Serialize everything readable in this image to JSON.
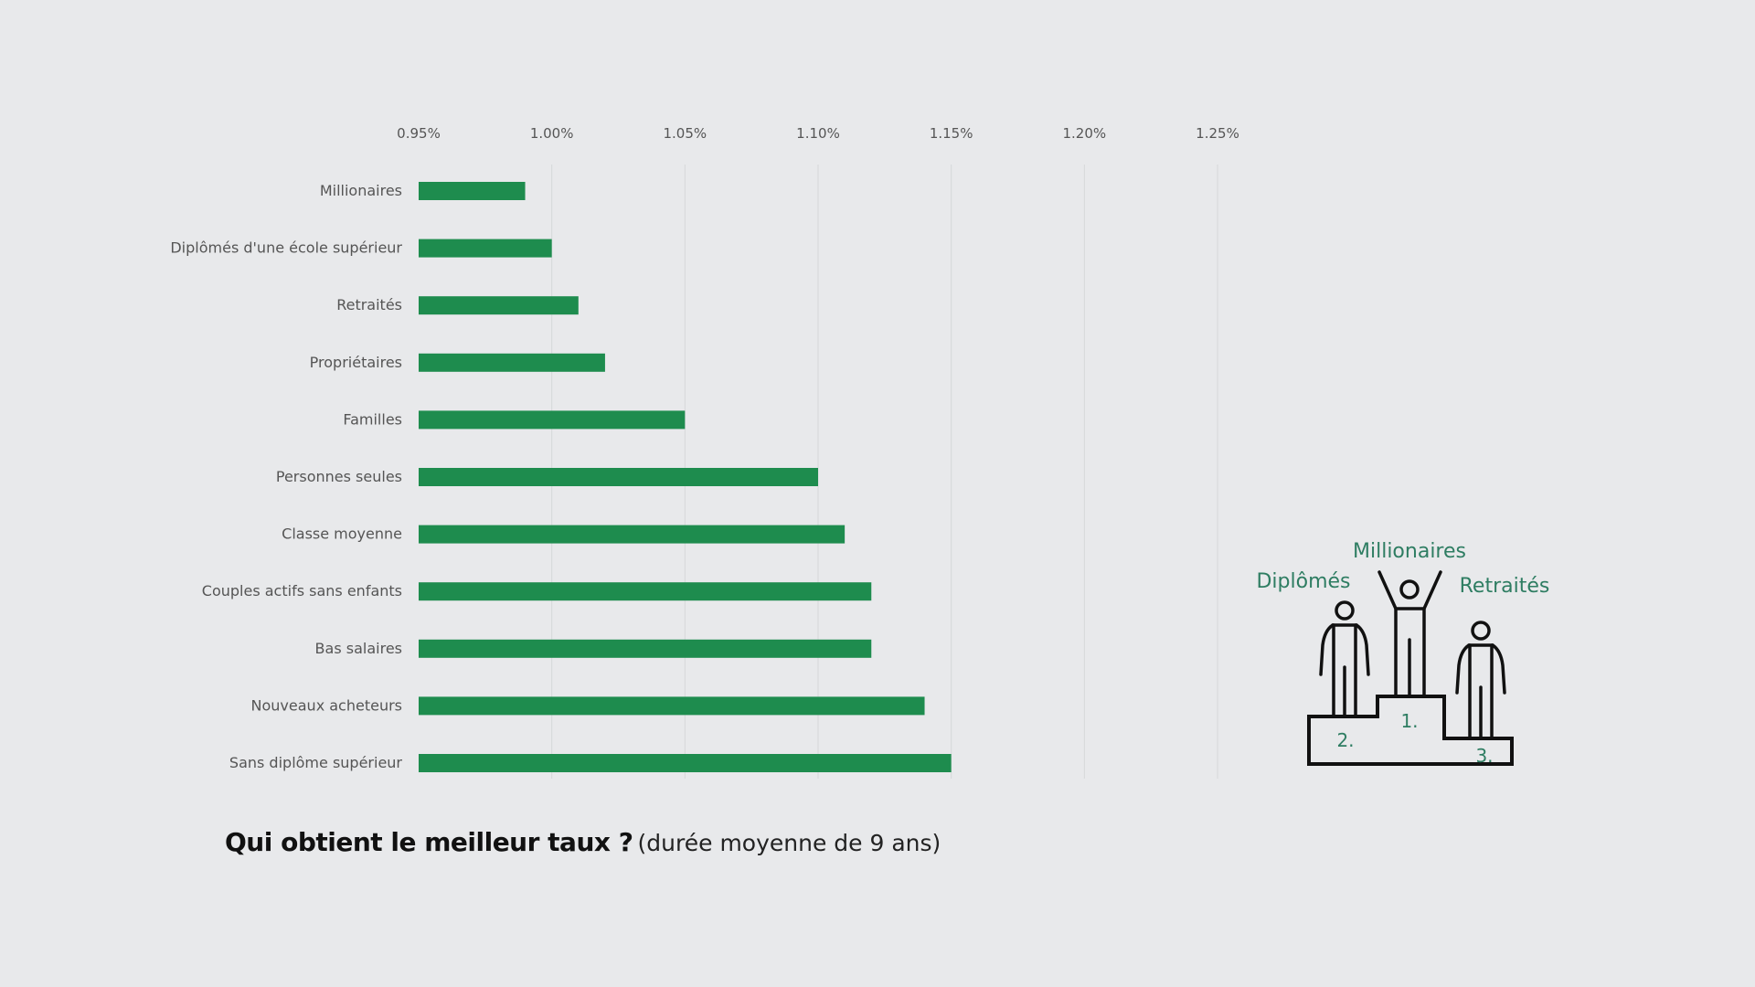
{
  "chart_data": {
    "type": "bar",
    "orientation": "horizontal",
    "categories": [
      "Millionaires",
      "Diplômés d'une école supérieur",
      "Retraités",
      "Propriétaires",
      "Familles",
      "Personnes seules",
      "Classe moyenne",
      "Couples actifs sans enfants",
      "Bas salaires",
      "Nouveaux acheteurs",
      "Sans diplôme supérieur"
    ],
    "values": [
      0.99,
      1.0,
      1.01,
      1.02,
      1.05,
      1.1,
      1.11,
      1.12,
      1.12,
      1.14,
      1.15
    ],
    "xlim": [
      0.95,
      1.25
    ],
    "xticks": [
      "0.95%",
      "1.00%",
      "1.05%",
      "1.10%",
      "1.15%",
      "1.20%",
      "1.25%"
    ],
    "xtick_values": [
      0.95,
      1.0,
      1.05,
      1.1,
      1.15,
      1.2,
      1.25
    ],
    "x_axis_position": "top",
    "grid": true,
    "bar_color": "#1e8c4e",
    "grid_color": "#d6d8da"
  },
  "caption": {
    "strong": "Qui obtient le meilleur taux ?",
    "sub": "(durée moyenne de 9 ans)"
  },
  "podium": {
    "first": "Millionaires",
    "second": "Diplômés",
    "third": "Retraités",
    "num_first": "1.",
    "num_second": "2.",
    "num_third": "3.",
    "label_color": "#2e7d62",
    "icon": "podium-winners-icon"
  }
}
